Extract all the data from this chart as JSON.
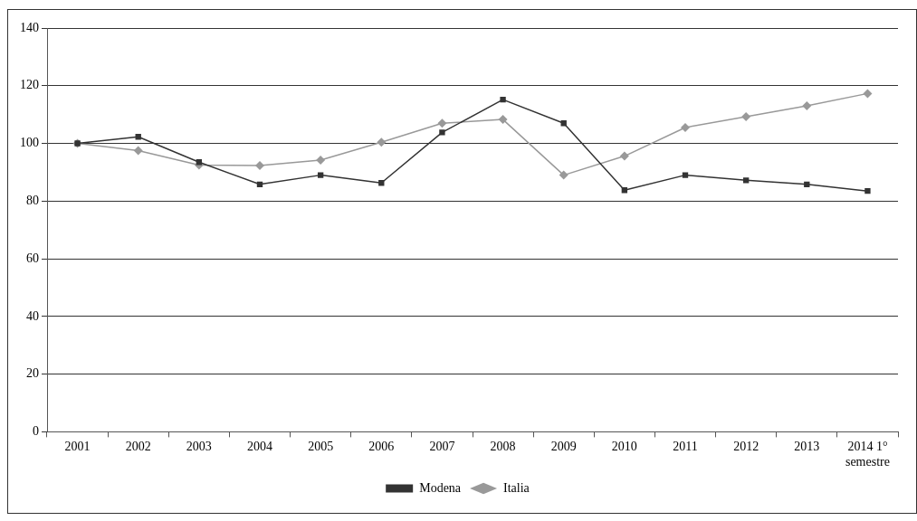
{
  "chart_data": {
    "type": "line",
    "categories": [
      "2001",
      "2002",
      "2003",
      "2004",
      "2005",
      "2006",
      "2007",
      "2008",
      "2009",
      "2010",
      "2011",
      "2012",
      "2013",
      "2014 1° semestre"
    ],
    "series": [
      {
        "name": "Italia",
        "color": "#999999",
        "marker": "diamond",
        "values": [
          100,
          97.5,
          92.5,
          92.3,
          94.2,
          100.4,
          107,
          108.3,
          89,
          95.6,
          105.5,
          109.3,
          113,
          117.3
        ]
      },
      {
        "name": "Modena",
        "color": "#333333",
        "marker": "square",
        "values": [
          100,
          102.3,
          93.5,
          85.8,
          89,
          86.3,
          103.8,
          115.2,
          107,
          83.8,
          89,
          87.2,
          85.8,
          83.5
        ]
      }
    ],
    "ylim": [
      0,
      140
    ],
    "yticks": [
      0,
      20,
      40,
      60,
      80,
      100,
      120,
      140
    ],
    "grid": "y",
    "legend": "bottom",
    "line_style": "solid"
  }
}
